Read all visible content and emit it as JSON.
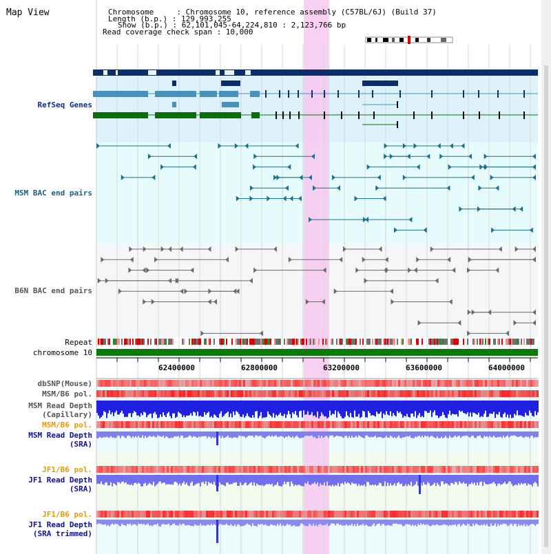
{
  "view_title": "Map View",
  "info": {
    "chromosome": "Chromosome     : Chromosome 10, reference assembly (C57BL/6J) (Build 37)",
    "length": "Length (b.p.) : 129,993,255",
    "show": "Show (b.p.) : 62,101,045-64,224,810 : 2,123,766 bp",
    "coverage": "Read coverage check span : 10,000"
  },
  "tracks": {
    "refseq": "RefSeq Genes",
    "msm_bac": "MSM BAC end pairs",
    "b6n_bac": "B6N BAC end pairs",
    "repeat": "Repeat",
    "chromosome": "chromosome 10",
    "dbsnp": "dbSNP(Mouse)",
    "msm_b6_pol_1": "MSM/B6 pol.",
    "msm_depth_cap_1": "MSM Read Depth",
    "msm_depth_cap_2": "(Capillary)",
    "msm_b6_pol_2": "MSM/B6 pol.",
    "msm_depth_sra_1": "MSM Read Depth",
    "msm_depth_sra_2": "(SRA)",
    "jf1_b6_pol_1": "JF1/B6 pol.",
    "jf1_depth_sra_1": "JF1 Read Depth",
    "jf1_depth_sra_2": "(SRA)",
    "jf1_b6_pol_2": "JF1/B6 pol.",
    "jf1_depth_trim_1": "JF1 Read Depth",
    "jf1_depth_trim_2": "(SRA trimmed)"
  },
  "axis": {
    "ticks": [
      "62400000",
      "62800000",
      "63200000",
      "63600000",
      "64000000"
    ]
  },
  "colors": {
    "refseq_dark": "#0b2e6b",
    "refseq_teal": "#4a90b8",
    "refseq_green": "#0a6e0a",
    "msm_label": "#1a5f80",
    "b6n_label": "#555555",
    "highlight": "#f7c8f0",
    "pol_label": "#e69a00",
    "depth_label": "#0d0d9e",
    "chromosome_bar": "#0a7a0a"
  }
}
